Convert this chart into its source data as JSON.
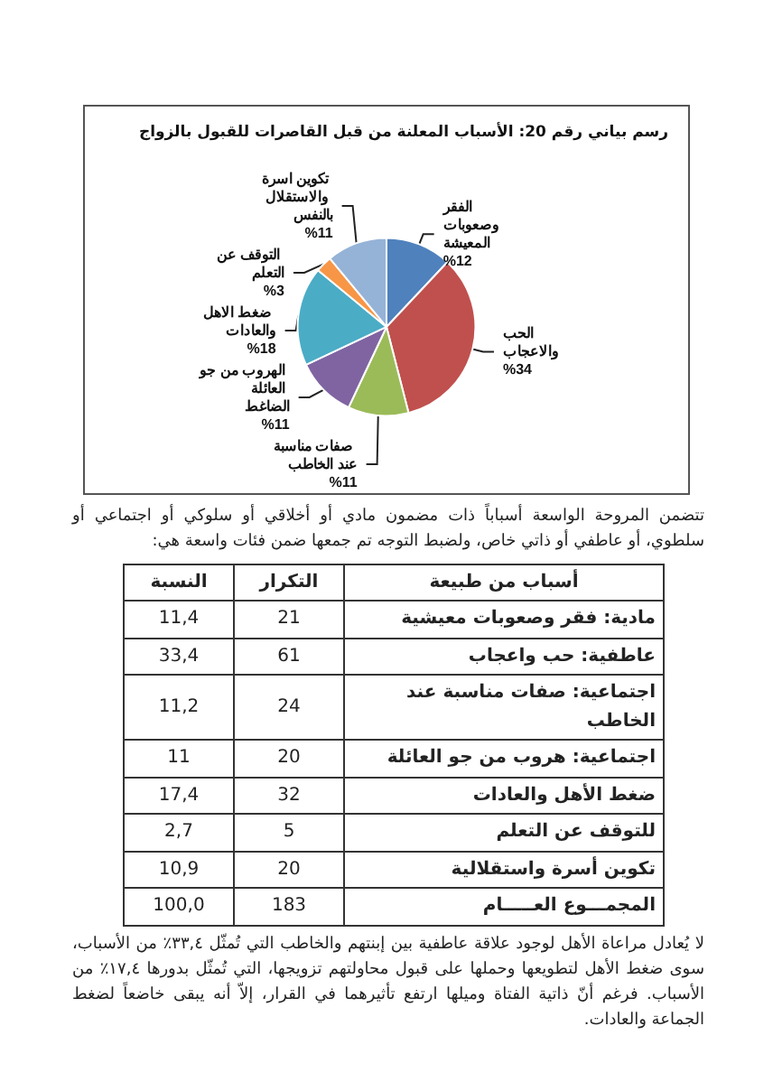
{
  "chart_data": [
    {
      "type": "pie",
      "title": "رسم بياني رقم 20: الأسباب المعلنة من قبل القاصرات للقبول بالزواج",
      "categories": [
        "الفقر وصعوبات المعيشة",
        "الحب والاعجاب",
        "صفات مناسبة عند الخاطب",
        "الهروب من جو العائلة الضاغط",
        "ضغط الاهل والعادات",
        "التوقف عن التعلم",
        "تكوين اسرة والاستقلال بالنفس"
      ],
      "values": [
        12,
        34,
        11,
        11,
        18,
        3,
        11
      ],
      "value_labels": [
        "%12",
        "%34",
        "%11",
        "%11",
        "%18",
        "%3",
        "%11"
      ],
      "colors": [
        "#4f81bd",
        "#c0504d",
        "#9bbb59",
        "#8064a2",
        "#4bacc6",
        "#f79646",
        "#95b3d7"
      ]
    },
    {
      "type": "other",
      "annotations": [
        "تتضمن المروحة الواسعة أسباباً ذات مضمون مادي أو أخلاقي أو سلوكي أو اجتماعي أو سلطوي، أو عاطفي أو ذاتي خاص، ولضبط التوجه تم جمعها ضمن فئات واسعة هي:",
        "لا يُعادل مراعاة الأهل لوجود علاقة عاطفية بين إبنتهم والخاطب التي تُمثّل ٣٣,٤٪ من الأسباب، سوى ضغط الأهل لتطويعها وحملها على قبول محاولتهم تزويجها، التي تُمثّل بدورها ١٧,٤٪ من الأسباب. فرغم أنّ ذاتية الفتاة وميلها ارتفع تأثيرهما في القرار، إلاّ أنه يبقى خاضعاً لضغط الجماعة والعادات."
      ],
      "xlabel": "أسباب من طبيعة",
      "data_labels": true,
      "categories": [
        "مادية: فقر وصعوبات معيشية",
        "عاطفية: حب واعجاب",
        "اجتماعية: صفات مناسبة عند الخاطب",
        "اجتماعية: هروب من جو العائلة",
        "ضغط الأهل والعادات",
        "للتوقف عن التعلم",
        "تكوين أسرة واستقلالية",
        "المجمـــوع العـــــام"
      ],
      "series": [
        {
          "name": "التكرار",
          "values": [
            21,
            61,
            24,
            20,
            32,
            5,
            20,
            183
          ]
        },
        {
          "name": "النسبة",
          "values": [
            11.4,
            33.4,
            11.2,
            11,
            17.4,
            2.7,
            10.9,
            100.0
          ],
          "value_labels": [
            "11,4",
            "33,4",
            "11,2",
            "11",
            "17,4",
            "2,7",
            "10,9",
            "100,0"
          ]
        }
      ]
    }
  ]
}
